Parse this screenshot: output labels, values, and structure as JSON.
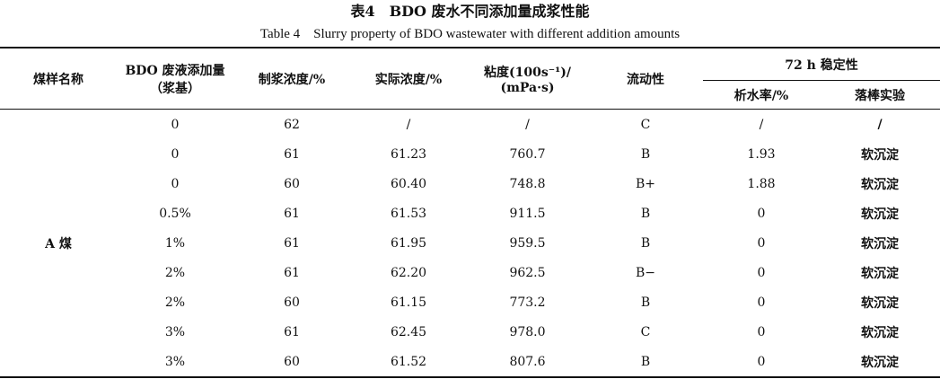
{
  "title": "表4　BDO 废水不同添加量成浆性能",
  "subtitle": "Table 4　Slurry property of BDO wastewater with different addition amounts",
  "table": {
    "header": {
      "coal": "煤样名称",
      "bdo": [
        "BDO 废液添加量",
        "（浆基）"
      ],
      "prep": "制浆浓度/%",
      "actual": "实际浓度/%",
      "viscosity": [
        "粘度(100s⁻¹)/",
        "(mPa·s)"
      ],
      "fluidity": "流动性",
      "stability": "72 h 稳定性",
      "water": "析水率/%",
      "rod": "落棒实验"
    },
    "group": "A 煤",
    "rows": [
      [
        "0",
        "62",
        "/",
        "/",
        "C",
        "/",
        "/"
      ],
      [
        "0",
        "61",
        "61.23",
        "760.7",
        "B",
        "1.93",
        "软沉淀"
      ],
      [
        "0",
        "60",
        "60.40",
        "748.8",
        "B+",
        "1.88",
        "软沉淀"
      ],
      [
        "0.5%",
        "61",
        "61.53",
        "911.5",
        "B",
        "0",
        "软沉淀"
      ],
      [
        "1%",
        "61",
        "61.95",
        "959.5",
        "B",
        "0",
        "软沉淀"
      ],
      [
        "2%",
        "61",
        "62.20",
        "962.5",
        "B−",
        "0",
        "软沉淀"
      ],
      [
        "2%",
        "60",
        "61.15",
        "773.2",
        "B",
        "0",
        "软沉淀"
      ],
      [
        "3%",
        "61",
        "62.45",
        "978.0",
        "C",
        "0",
        "软沉淀"
      ],
      [
        "3%",
        "60",
        "61.52",
        "807.6",
        "B",
        "0",
        "软沉淀"
      ]
    ]
  }
}
